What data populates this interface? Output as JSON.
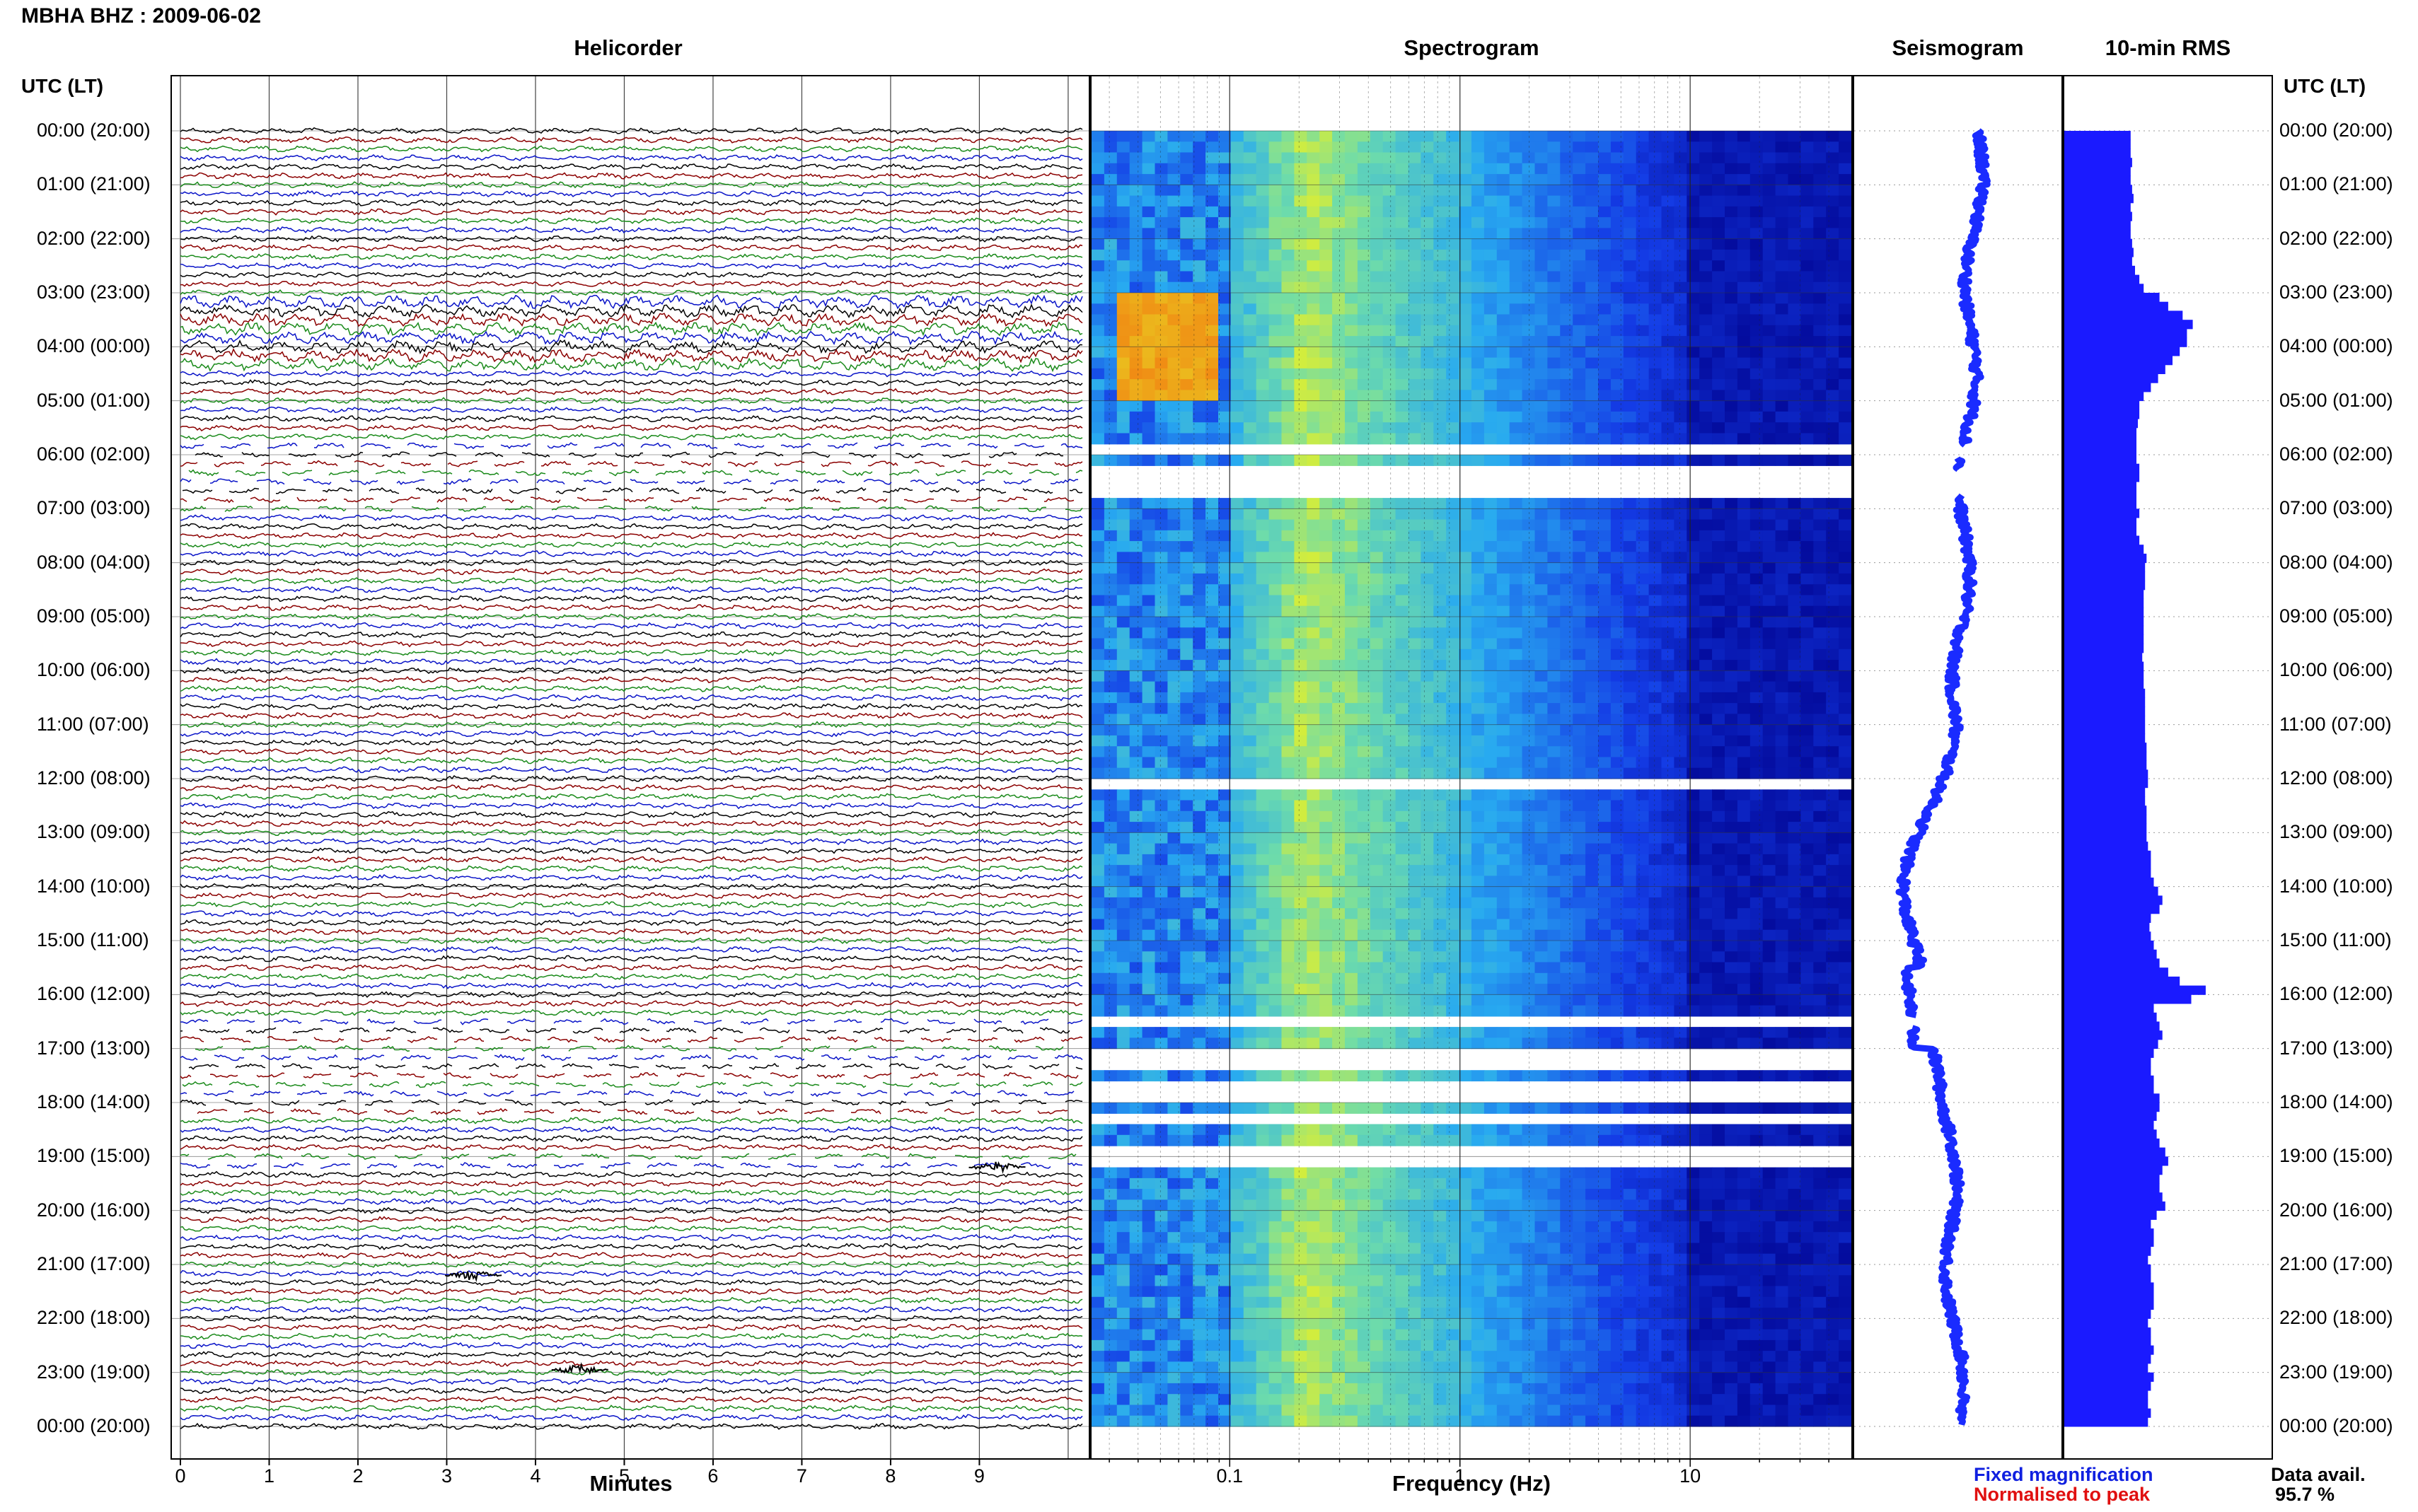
{
  "header": {
    "station_title": "MBHA BHZ : 2009-06-02"
  },
  "panels": {
    "helicorder_title": "Helicorder",
    "spectrogram_title": "Spectrogram",
    "seismogram_title": "Seismogram",
    "rms_title": "10-min RMS",
    "utc_header_left": "UTC (LT)",
    "utc_header_right": "UTC (LT)"
  },
  "axes": {
    "helicorder_xlabel": "Minutes",
    "spectrogram_xlabel": "Frequency (Hz)"
  },
  "legend": {
    "fixed": "Fixed magnification",
    "fixed_color": "#1020e0",
    "normalised": "Normalised to peak",
    "normalised_color": "#e01010"
  },
  "availability": {
    "label": "Data avail.",
    "value": "95.7 %"
  },
  "colors": {
    "trace_cycle": [
      "#000000",
      "#8b0000",
      "#1a8a1a",
      "#0a14c8"
    ],
    "seismogram": "#1a2bff",
    "rms_bar": "#1a1aff",
    "spectrogram_low": "#00008b",
    "spectrogram_high": "#ffff00"
  },
  "chart_data": [
    {
      "type": "line",
      "name": "helicorder",
      "title": "Helicorder",
      "xlabel": "Minutes",
      "xlim": [
        0,
        10
      ],
      "x_ticks": [
        "0",
        "1",
        "2",
        "3",
        "4",
        "5",
        "6",
        "7",
        "8",
        "9"
      ],
      "y_tick_labels": [
        "00:00 (20:00)",
        "01:00 (21:00)",
        "02:00 (22:00)",
        "03:00 (23:00)",
        "04:00 (00:00)",
        "05:00 (01:00)",
        "06:00 (02:00)",
        "07:00 (03:00)",
        "08:00 (04:00)",
        "09:00 (05:00)",
        "10:00 (06:00)",
        "11:00 (07:00)",
        "12:00 (08:00)",
        "13:00 (09:00)",
        "14:00 (10:00)",
        "15:00 (11:00)",
        "16:00 (12:00)",
        "17:00 (13:00)",
        "18:00 (14:00)",
        "19:00 (15:00)",
        "20:00 (16:00)",
        "21:00 (17:00)",
        "22:00 (18:00)",
        "23:00 (19:00)",
        "00:00 (20:00)"
      ],
      "traces_per_hour": 6,
      "gaps_utc_hours": [
        [
          5.8,
          7.0
        ],
        [
          16.4,
          18.2
        ],
        [
          18.9,
          19.2
        ]
      ]
    },
    {
      "type": "heatmap",
      "name": "spectrogram",
      "title": "Spectrogram",
      "xlabel": "Frequency (Hz)",
      "x_scale": "log",
      "x_tick_labels": [
        "0.1",
        "1",
        "10"
      ],
      "y_range_utc_hours": [
        0,
        24
      ],
      "gaps_utc_hours": [
        [
          5.85,
          6.0
        ],
        [
          6.25,
          6.7
        ],
        [
          12.05,
          12.15
        ],
        [
          16.4,
          16.55
        ],
        [
          16.75,
          16.9
        ],
        [
          17.05,
          17.45
        ],
        [
          17.65,
          17.75
        ],
        [
          17.9,
          18.0
        ],
        [
          18.2,
          18.35
        ],
        [
          18.85,
          18.95
        ],
        [
          19.05,
          19.15
        ]
      ]
    },
    {
      "type": "line",
      "name": "seismogram",
      "title": "Seismogram",
      "y_range_utc_hours": [
        0,
        24
      ],
      "gaps_utc_hours": [
        [
          5.85,
          6.05
        ],
        [
          6.3,
          6.75
        ],
        [
          16.4,
          16.6
        ]
      ]
    },
    {
      "type": "bar",
      "name": "10-min RMS",
      "title": "10-min RMS",
      "orientation": "horizontal",
      "y_range_utc_hours": [
        0,
        24
      ],
      "relative_values": [
        0.46,
        0.46,
        0.46,
        0.47,
        0.46,
        0.46,
        0.47,
        0.48,
        0.46,
        0.47,
        0.46,
        0.46,
        0.47,
        0.48,
        0.47,
        0.49,
        0.52,
        0.55,
        0.66,
        0.72,
        0.82,
        0.89,
        0.85,
        0.85,
        0.8,
        0.75,
        0.7,
        0.65,
        0.6,
        0.55,
        0.52,
        0.52,
        0.51,
        0.5,
        0.5,
        0.5,
        0.5,
        0.52,
        0.52,
        0.5,
        0.5,
        0.5,
        0.52,
        0.5,
        0.5,
        0.52,
        0.55,
        0.57,
        0.56,
        0.56,
        0.56,
        0.55,
        0.55,
        0.55,
        0.55,
        0.55,
        0.55,
        0.55,
        0.54,
        0.55,
        0.55,
        0.55,
        0.56,
        0.56,
        0.56,
        0.56,
        0.56,
        0.56,
        0.57,
        0.57,
        0.57,
        0.58,
        0.58,
        0.56,
        0.56,
        0.57,
        0.57,
        0.57,
        0.57,
        0.58,
        0.6,
        0.6,
        0.6,
        0.62,
        0.65,
        0.68,
        0.66,
        0.6,
        0.59,
        0.6,
        0.62,
        0.64,
        0.66,
        0.72,
        0.8,
        0.98,
        0.88,
        0.62,
        0.64,
        0.66,
        0.68,
        0.65,
        0.62,
        0.6,
        0.6,
        0.62,
        0.62,
        0.66,
        0.66,
        0.64,
        0.62,
        0.64,
        0.66,
        0.7,
        0.72,
        0.68,
        0.66,
        0.66,
        0.68,
        0.7,
        0.64,
        0.6,
        0.62,
        0.62,
        0.6,
        0.58,
        0.6,
        0.6,
        0.62,
        0.62,
        0.62,
        0.6,
        0.58,
        0.6,
        0.6,
        0.62,
        0.6,
        0.58,
        0.62,
        0.6,
        0.58,
        0.58,
        0.6,
        0.58
      ]
    }
  ]
}
